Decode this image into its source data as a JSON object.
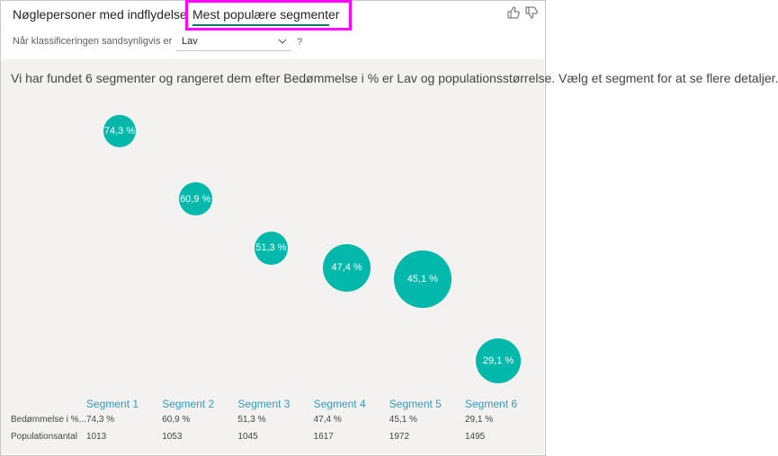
{
  "tabs": {
    "key_influencers": "Nøglepersoner med indflydelse",
    "top_segments": "Mest populære segmenter"
  },
  "filter": {
    "label": "Når klassificeringen sandsynligvis er",
    "value": "Lav",
    "help": "?"
  },
  "summary": "Vi har fundet 6 segmenter og rangeret dem efter Bedømmelse i % er Lav og populationsstørrelse. Vælg et segment for at se flere detaljer.",
  "colors": {
    "bubble": "#01b8aa",
    "segment_label": "#3599b8",
    "highlight": "#ff00ff"
  },
  "icons": {
    "like": "thumbs-up-icon",
    "dislike": "thumbs-down-icon",
    "dropdown": "chevron-down-icon"
  },
  "table": {
    "row_labels": [
      "Bedømmelse i %...",
      "Populationsantal"
    ]
  },
  "segments": [
    {
      "label": "Segment 1",
      "rating_text": "74,3 %",
      "population_text": "1013"
    },
    {
      "label": "Segment 2",
      "rating_text": "60,9 %",
      "population_text": "1053"
    },
    {
      "label": "Segment 3",
      "rating_text": "51,3 %",
      "population_text": "1045"
    },
    {
      "label": "Segment 4",
      "rating_text": "47,4 %",
      "population_text": "1617"
    },
    {
      "label": "Segment 5",
      "rating_text": "45,1 %",
      "population_text": "1972"
    },
    {
      "label": "Segment 6",
      "rating_text": "29,1 %",
      "population_text": "1495"
    }
  ],
  "chart_data": {
    "type": "scatter",
    "categories": [
      "Segment 1",
      "Segment 2",
      "Segment 3",
      "Segment 4",
      "Segment 5",
      "Segment 6"
    ],
    "series": [
      {
        "values": [
          74.3,
          60.9,
          51.3,
          47.4,
          45.1,
          29.1
        ],
        "sizes": [
          1013,
          1053,
          1045,
          1617,
          1972,
          1495
        ]
      }
    ],
    "title": "",
    "xlabel": "",
    "ylabel": ""
  }
}
